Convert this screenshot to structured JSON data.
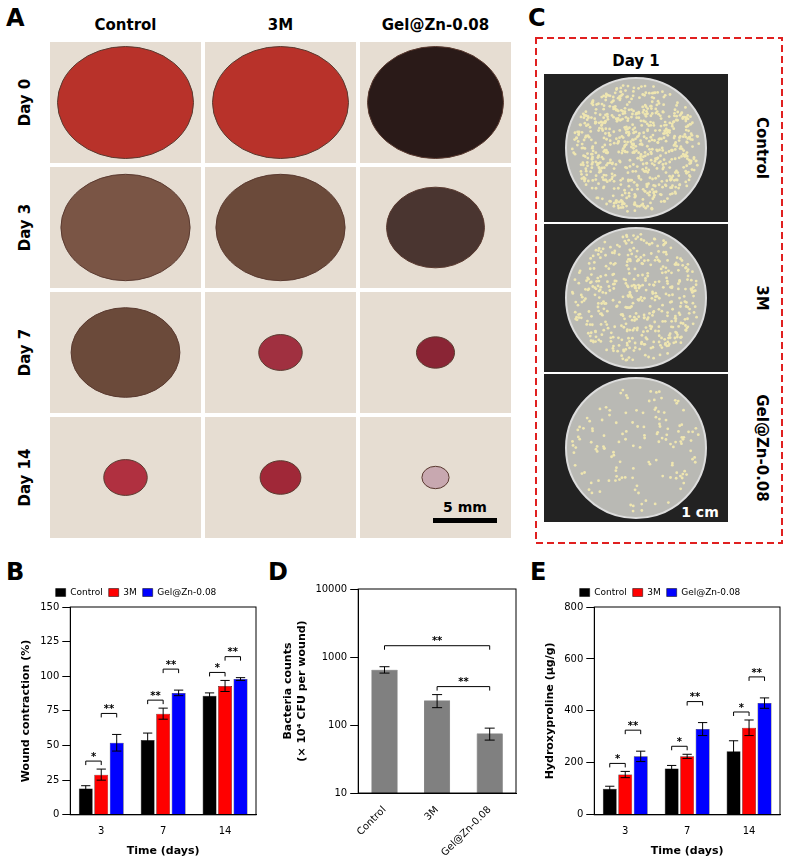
{
  "panels": {
    "wounds": {
      "label": "A",
      "columns": [
        "Control",
        "3M",
        "Gel@Zn-0.08"
      ],
      "rows": [
        "Day 0",
        "Day 3",
        "Day 7",
        "Day 14"
      ],
      "scale_bar": "5 mm"
    },
    "plates": {
      "label": "C",
      "title": "Day 1",
      "rows": [
        "Control",
        "3M",
        "Gel@Zn-0.08"
      ],
      "scale_bar": "1 cm"
    }
  },
  "chart_data": [
    {
      "label": "B",
      "type": "bar",
      "x_label": "Time (days)",
      "y_label": "Wound contraction (%)",
      "categories": [
        "3",
        "7",
        "14"
      ],
      "series": [
        {
          "name": "Control",
          "color": "#000000",
          "values": [
            19,
            54,
            86
          ],
          "errors": [
            2,
            5,
            2
          ]
        },
        {
          "name": "3M",
          "color": "#ff0000",
          "values": [
            29,
            73,
            93
          ],
          "errors": [
            4,
            4,
            4
          ]
        },
        {
          "name": "Gel@Zn-0.08",
          "color": "#0000ff",
          "values": [
            52,
            88,
            98
          ],
          "errors": [
            6,
            2,
            1
          ]
        }
      ],
      "ylim": [
        0,
        150
      ],
      "yticks": [
        0,
        25,
        50,
        75,
        100,
        125,
        150
      ],
      "grid": false,
      "legend": "top",
      "significance": [
        {
          "category": "3",
          "from": "Control",
          "to": "3M",
          "label": "*"
        },
        {
          "category": "3",
          "from": "3M",
          "to": "Gel@Zn-0.08",
          "label": "**"
        },
        {
          "category": "7",
          "from": "Control",
          "to": "3M",
          "label": "**"
        },
        {
          "category": "7",
          "from": "3M",
          "to": "Gel@Zn-0.08",
          "label": "**"
        },
        {
          "category": "14",
          "from": "Control",
          "to": "3M",
          "label": "*"
        },
        {
          "category": "14",
          "from": "3M",
          "to": "Gel@Zn-0.08",
          "label": "**"
        }
      ]
    },
    {
      "label": "D",
      "type": "bar",
      "y_label": [
        "Bacteria counts",
        "(× 10⁴ CFU per wound)"
      ],
      "categories": [
        "Control",
        "3M",
        "Gel@Zn-0.08"
      ],
      "values": [
        650,
        230,
        75
      ],
      "errors": [
        70,
        50,
        15
      ],
      "color": "#808080",
      "log": "y",
      "ylim": [
        10,
        10000
      ],
      "yticks": [
        10,
        100,
        1000,
        10000
      ],
      "grid": false,
      "significance": [
        {
          "from": "3M",
          "to": "Gel@Zn-0.08",
          "label": "**"
        },
        {
          "from": "Control",
          "to": "Gel@Zn-0.08",
          "label": "**"
        }
      ]
    },
    {
      "label": "E",
      "type": "bar",
      "x_label": "Time (days)",
      "y_label": "Hydroxyproline (μg/g)",
      "categories": [
        "3",
        "7",
        "14"
      ],
      "series": [
        {
          "name": "Control",
          "color": "#000000",
          "values": [
            100,
            178,
            245
          ],
          "errors": [
            10,
            12,
            40
          ]
        },
        {
          "name": "3M",
          "color": "#ff0000",
          "values": [
            155,
            225,
            335
          ],
          "errors": [
            12,
            8,
            30
          ]
        },
        {
          "name": "Gel@Zn-0.08",
          "color": "#0000ff",
          "values": [
            225,
            330,
            430
          ],
          "errors": [
            20,
            25,
            20
          ]
        }
      ],
      "ylim": [
        0,
        800
      ],
      "yticks": [
        0,
        200,
        400,
        600,
        800
      ],
      "grid": false,
      "legend": "top",
      "significance": [
        {
          "category": "3",
          "from": "Control",
          "to": "3M",
          "label": "*"
        },
        {
          "category": "3",
          "from": "3M",
          "to": "Gel@Zn-0.08",
          "label": "**"
        },
        {
          "category": "7",
          "from": "Control",
          "to": "3M",
          "label": "*"
        },
        {
          "category": "7",
          "from": "3M",
          "to": "Gel@Zn-0.08",
          "label": "**"
        },
        {
          "category": "14",
          "from": "Control",
          "to": "3M",
          "label": "*"
        },
        {
          "category": "14",
          "from": "3M",
          "to": "Gel@Zn-0.08",
          "label": "**"
        }
      ]
    }
  ]
}
